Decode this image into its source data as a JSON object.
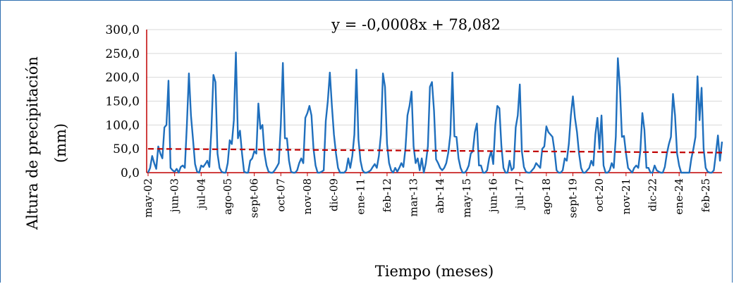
{
  "chart_data": {
    "type": "line",
    "title": "",
    "ylabel_line1": "Altura de precipitación",
    "ylabel_line2": "(mm)",
    "xlabel": "Tiempo (meses)",
    "ylim": [
      0,
      300
    ],
    "yticks": [
      "0,0",
      "50,0",
      "100,0",
      "150,0",
      "200,0",
      "250,0",
      "300,0"
    ],
    "ytick_values": [
      0,
      50,
      100,
      150,
      200,
      250,
      300
    ],
    "xtick_labels": [
      "may-02",
      "jun-03",
      "jul-04",
      "ago-05",
      "sept-06",
      "oct-07",
      "nov-08",
      "dic-09",
      "ene-11",
      "feb-12",
      "mar-13",
      "abr-14",
      "may-15",
      "jun-16",
      "jul-17",
      "ago-18",
      "sept-19",
      "oct-20",
      "nov-21",
      "dic-22",
      "ene-24",
      "feb-25"
    ],
    "xtick_months": [
      0,
      13,
      26,
      39,
      52,
      65,
      78,
      91,
      104,
      117,
      130,
      143,
      156,
      169,
      182,
      195,
      208,
      221,
      234,
      247,
      260,
      273
    ],
    "x_start": "may-02",
    "grid": true,
    "series": [
      {
        "name": "",
        "values": [
          0,
          10,
          35,
          20,
          8,
          55,
          40,
          30,
          95,
          100,
          193,
          10,
          5,
          2,
          8,
          0,
          12,
          15,
          10,
          100,
          208,
          120,
          70,
          18,
          2,
          0,
          15,
          12,
          18,
          25,
          12,
          90,
          205,
          190,
          40,
          10,
          2,
          0,
          0,
          20,
          68,
          60,
          110,
          252,
          72,
          88,
          40,
          2,
          0,
          0,
          25,
          30,
          45,
          40,
          145,
          92,
          100,
          40,
          15,
          2,
          0,
          0,
          5,
          12,
          20,
          102,
          230,
          72,
          72,
          25,
          2,
          0,
          0,
          5,
          20,
          30,
          20,
          115,
          125,
          140,
          120,
          50,
          15,
          0,
          0,
          2,
          5,
          108,
          150,
          210,
          140,
          80,
          40,
          10,
          0,
          0,
          0,
          5,
          30,
          10,
          35,
          80,
          216,
          70,
          25,
          5,
          0,
          0,
          2,
          5,
          12,
          18,
          10,
          35,
          80,
          208,
          180,
          60,
          20,
          5,
          0,
          10,
          2,
          10,
          20,
          12,
          50,
          120,
          140,
          170,
          55,
          20,
          30,
          5,
          30,
          0,
          20,
          55,
          180,
          190,
          130,
          28,
          20,
          10,
          5,
          10,
          20,
          42,
          80,
          210,
          76,
          75,
          30,
          10,
          0,
          0,
          5,
          15,
          40,
          45,
          85,
          103,
          15,
          15,
          0,
          0,
          5,
          30,
          45,
          18,
          100,
          140,
          135,
          55,
          10,
          0,
          0,
          25,
          5,
          10,
          95,
          120,
          185,
          45,
          12,
          2,
          0,
          0,
          5,
          10,
          20,
          15,
          10,
          50,
          55,
          97,
          85,
          80,
          75,
          45,
          5,
          0,
          0,
          5,
          30,
          25,
          60,
          120,
          160,
          115,
          85,
          40,
          10,
          0,
          0,
          5,
          10,
          25,
          15,
          80,
          115,
          50,
          120,
          15,
          0,
          0,
          5,
          20,
          10,
          75,
          240,
          180,
          75,
          77,
          40,
          10,
          5,
          0,
          10,
          15,
          10,
          45,
          125,
          90,
          10,
          10,
          0,
          0,
          15,
          5,
          2,
          0,
          0,
          12,
          40,
          60,
          75,
          165,
          120,
          40,
          15,
          0,
          0,
          0,
          0,
          0,
          30,
          50,
          75,
          202,
          110,
          178,
          50,
          10,
          2,
          0,
          0,
          5,
          40,
          78,
          25,
          65
        ]
      }
    ],
    "trendline": {
      "equation": "y = -0,0008x + 78,082",
      "start": 50,
      "end": 42
    }
  },
  "colors": {
    "series": "#1f6fbd",
    "trend": "#c00000",
    "axis": "#c00000",
    "grid": "#d9d9d9",
    "frame": "#2f6fb0"
  }
}
